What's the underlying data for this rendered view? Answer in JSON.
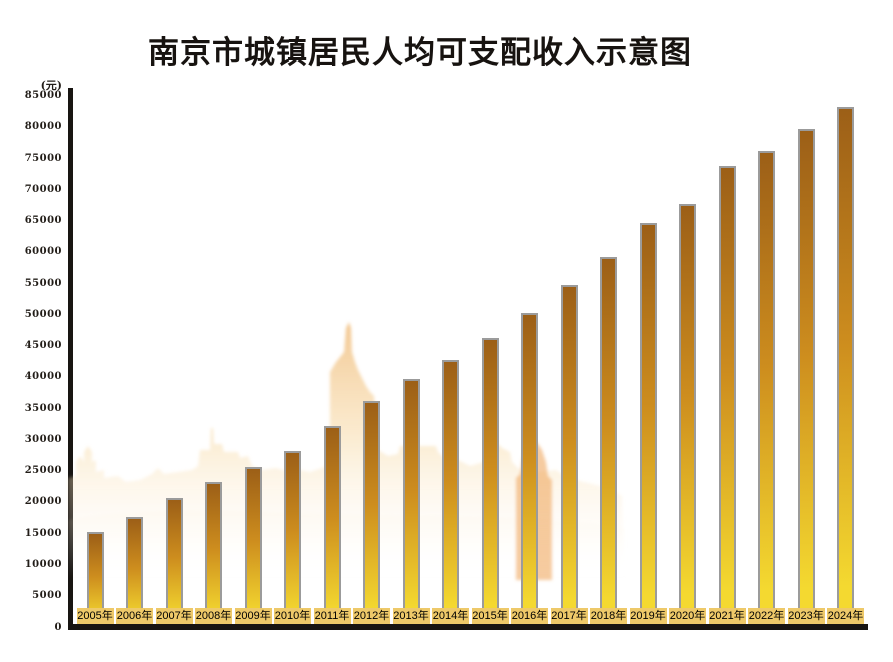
{
  "title": "南京市城镇居民人均可支配收入示意图",
  "y_axis": {
    "unit_label": "(元)",
    "ticks": [
      0,
      5000,
      10000,
      15000,
      20000,
      25000,
      30000,
      35000,
      40000,
      45000,
      50000,
      55000,
      60000,
      65000,
      70000,
      75000,
      80000,
      85000
    ]
  },
  "chart_data": {
    "type": "bar",
    "title": "南京市城镇居民人均可支配收入示意图",
    "xlabel": "",
    "ylabel": "(元)",
    "ylim": [
      0,
      85000
    ],
    "ytick_step": 5000,
    "grid": false,
    "legend": false,
    "categories": [
      "2005年",
      "2006年",
      "2007年",
      "2008年",
      "2009年",
      "2010年",
      "2011年",
      "2012年",
      "2013年",
      "2014年",
      "2015年",
      "2016年",
      "2017年",
      "2018年",
      "2019年",
      "2020年",
      "2021年",
      "2022年",
      "2023年",
      "2024年"
    ],
    "values": [
      15000,
      17500,
      20500,
      23000,
      25500,
      28000,
      32000,
      36000,
      39500,
      42500,
      46000,
      50000,
      54500,
      59000,
      64500,
      67500,
      73500,
      76000,
      79500,
      83000
    ],
    "background_watermark": "city-skyline-silhouette"
  },
  "colors": {
    "bar_gradient_top": "#9c5f17",
    "bar_gradient_mid": "#cd8d1e",
    "bar_gradient_bottom": "#f4d930",
    "bar_border": "#9b9b9b",
    "axis": "#181512",
    "year_chip_bg": "#eec969",
    "skyline_tint": "#f0b86e",
    "title_color": "#171310"
  }
}
